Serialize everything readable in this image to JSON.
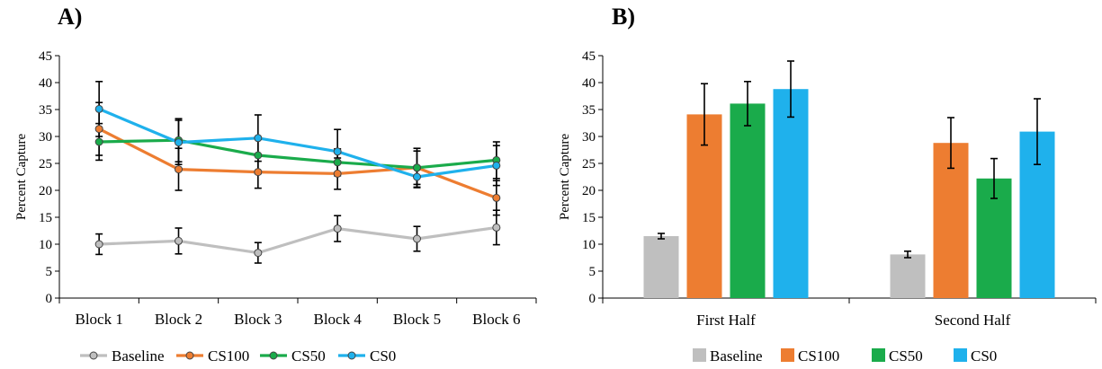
{
  "chart_data": [
    {
      "type": "line",
      "panel_label": "A)",
      "ylabel": "Percent Capture",
      "xlabel": "",
      "ylim": [
        0,
        45
      ],
      "yticks": [
        "0",
        "5",
        "10",
        "15",
        "20",
        "25",
        "30",
        "35",
        "40",
        "45"
      ],
      "categories": [
        "Block 1",
        "Block 2",
        "Block 3",
        "Block 4",
        "Block 5",
        "Block 6"
      ],
      "series": [
        {
          "name": "Baseline",
          "color": "#bfbfbf",
          "values": [
            10.0,
            10.6,
            8.4,
            12.9,
            11.0,
            13.1
          ],
          "errors": [
            1.9,
            2.4,
            1.9,
            2.4,
            2.3,
            3.2
          ]
        },
        {
          "name": "CS100",
          "color": "#ed7d31",
          "values": [
            31.4,
            23.9,
            23.4,
            23.1,
            24.2,
            18.6
          ],
          "errors": [
            4.9,
            3.9,
            3.0,
            2.9,
            3.6,
            3.2
          ]
        },
        {
          "name": "CS50",
          "color": "#1aab4b",
          "values": [
            29.0,
            29.3,
            26.5,
            25.2,
            24.2,
            25.6
          ],
          "errors": [
            3.4,
            4.0,
            3.4,
            2.5,
            3.1,
            3.4
          ]
        },
        {
          "name": "CS0",
          "color": "#1fb1ec",
          "values": [
            35.1,
            28.9,
            29.7,
            27.2,
            22.5,
            24.6
          ],
          "errors": [
            5.1,
            4.1,
            4.3,
            4.1,
            2.0,
            3.7
          ]
        }
      ],
      "legend_position": "bottom"
    },
    {
      "type": "bar",
      "panel_label": "B)",
      "ylabel": "Percent Capture",
      "xlabel": "",
      "ylim": [
        0,
        45
      ],
      "yticks": [
        "0",
        "5",
        "10",
        "15",
        "20",
        "25",
        "30",
        "35",
        "40",
        "45"
      ],
      "categories": [
        "First Half",
        "Second Half"
      ],
      "series": [
        {
          "name": "Baseline",
          "color": "#bfbfbf",
          "values": [
            11.5,
            8.1
          ],
          "errors": [
            0.5,
            0.6
          ]
        },
        {
          "name": "CS100",
          "color": "#ed7d31",
          "values": [
            34.1,
            28.8
          ],
          "errors": [
            5.7,
            4.7
          ]
        },
        {
          "name": "CS50",
          "color": "#1aab4b",
          "values": [
            36.1,
            22.2
          ],
          "errors": [
            4.1,
            3.7
          ]
        },
        {
          "name": "CS0",
          "color": "#1fb1ec",
          "values": [
            38.8,
            30.9
          ],
          "errors": [
            5.2,
            6.1
          ]
        }
      ],
      "legend_position": "bottom"
    }
  ]
}
